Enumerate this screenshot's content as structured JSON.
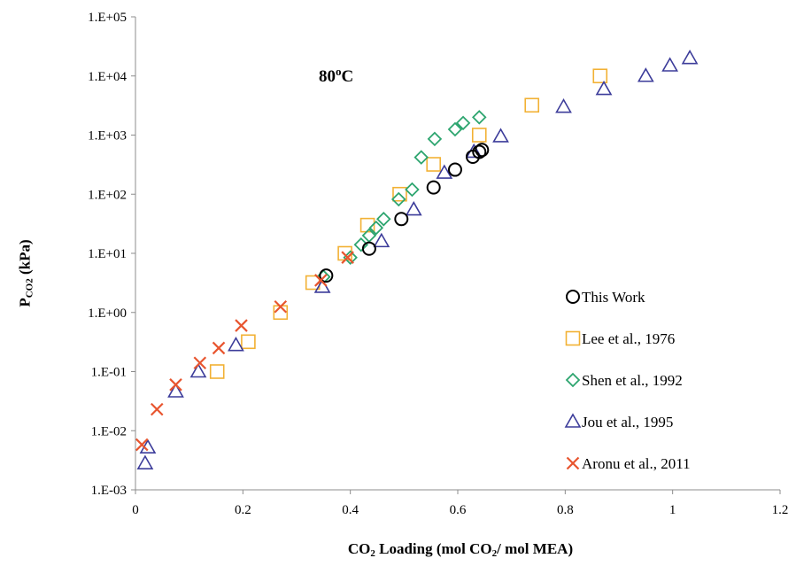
{
  "chart_data": {
    "type": "scatter",
    "annotation": "80",
    "annotation_sup": "o",
    "annotation_suffix": "C",
    "ylabel_prefix": "P",
    "ylabel_sub": "CO2",
    "ylabel_suffix": " (kPa)",
    "xlabel_part1": "CO",
    "xlabel_sub1": "2",
    "xlabel_part2": " Loading (mol CO",
    "xlabel_sub2": "2",
    "xlabel_part3": "/ mol MEA)",
    "xlim": [
      0,
      1.2
    ],
    "ylim": [
      0.001,
      100000
    ],
    "yscale": "log",
    "grid": false,
    "legend_position": "bottom-right",
    "x_ticks": [
      0,
      0.2,
      0.4,
      0.6,
      0.8,
      1,
      1.2
    ],
    "x_tick_labels": [
      "0",
      "0.2",
      "0.4",
      "0.6",
      "0.8",
      "1",
      "1.2"
    ],
    "y_ticks": [
      0.001,
      0.01,
      0.1,
      1,
      10,
      100,
      1000,
      10000,
      100000
    ],
    "y_tick_labels": [
      "1.E-03",
      "1.E-02",
      "1.E-01",
      "1.E+00",
      "1.E+01",
      "1.E+02",
      "1.E+03",
      "1.E+04",
      "1.E+05"
    ],
    "series": [
      {
        "name": "This Work",
        "marker": "circle",
        "color": "#000000",
        "points": [
          [
            0.355,
            4.2
          ],
          [
            0.435,
            12
          ],
          [
            0.495,
            38
          ],
          [
            0.555,
            130
          ],
          [
            0.595,
            260
          ],
          [
            0.628,
            430
          ],
          [
            0.64,
            520
          ],
          [
            0.645,
            560
          ]
        ]
      },
      {
        "name": "Lee et al., 1976",
        "marker": "square",
        "color": "#F2B134",
        "points": [
          [
            0.152,
            0.1
          ],
          [
            0.21,
            0.32
          ],
          [
            0.27,
            1.0
          ],
          [
            0.33,
            3.2
          ],
          [
            0.39,
            10
          ],
          [
            0.432,
            30
          ],
          [
            0.492,
            100
          ],
          [
            0.555,
            320
          ],
          [
            0.64,
            1000
          ],
          [
            0.738,
            3200
          ],
          [
            0.865,
            10000
          ]
        ]
      },
      {
        "name": "Shen et al., 1992",
        "marker": "diamond",
        "color": "#2DA56F",
        "points": [
          [
            0.35,
            4.0
          ],
          [
            0.4,
            8.5
          ],
          [
            0.42,
            14
          ],
          [
            0.435,
            20
          ],
          [
            0.448,
            27
          ],
          [
            0.462,
            38
          ],
          [
            0.49,
            82
          ],
          [
            0.515,
            120
          ],
          [
            0.532,
            420
          ],
          [
            0.557,
            860
          ],
          [
            0.595,
            1250
          ],
          [
            0.61,
            1600
          ],
          [
            0.64,
            2000
          ]
        ]
      },
      {
        "name": "Jou et al., 1995",
        "marker": "triangle",
        "color": "#3C3C9A",
        "points": [
          [
            0.018,
            0.0028
          ],
          [
            0.023,
            0.0052
          ],
          [
            0.075,
            0.046
          ],
          [
            0.117,
            0.1
          ],
          [
            0.187,
            0.28
          ],
          [
            0.348,
            2.7
          ],
          [
            0.458,
            16
          ],
          [
            0.518,
            55
          ],
          [
            0.575,
            230
          ],
          [
            0.63,
            520
          ],
          [
            0.68,
            950
          ],
          [
            0.797,
            3000
          ],
          [
            0.872,
            6000
          ],
          [
            0.95,
            10000
          ],
          [
            0.995,
            15000
          ],
          [
            1.032,
            20000
          ]
        ]
      },
      {
        "name": "Aronu et al., 2011",
        "marker": "x",
        "color": "#E8552F",
        "points": [
          [
            0.012,
            0.0058
          ],
          [
            0.04,
            0.023
          ],
          [
            0.075,
            0.06
          ],
          [
            0.12,
            0.14
          ],
          [
            0.155,
            0.25
          ],
          [
            0.197,
            0.6
          ],
          [
            0.27,
            1.25
          ],
          [
            0.345,
            3.5
          ],
          [
            0.395,
            8.5
          ]
        ]
      }
    ]
  }
}
